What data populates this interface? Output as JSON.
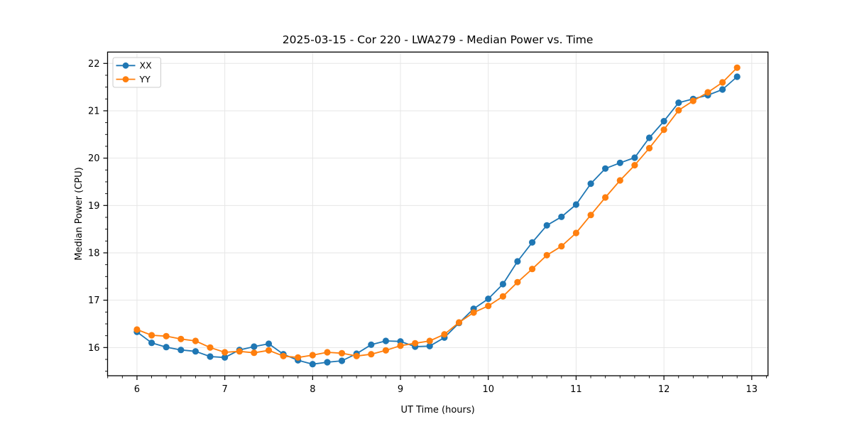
{
  "chart_data": {
    "type": "line",
    "title": "2025-03-15 - Cor 220 - LWA279 - Median Power vs. Time",
    "xlabel": "UT Time (hours)",
    "ylabel": "Median Power (CPU)",
    "xlim": [
      5.665,
      13.185
    ],
    "ylim": [
      15.405,
      22.24
    ],
    "xticks": [
      6,
      7,
      8,
      9,
      10,
      11,
      12,
      13
    ],
    "yticks": [
      16,
      17,
      18,
      19,
      20,
      21,
      22
    ],
    "x_minor_step_hours": 0.1667,
    "y_minor_step": 0.25,
    "grid": "major-only",
    "legend_position": "upper-left",
    "x": [
      6.0,
      6.167,
      6.333,
      6.5,
      6.667,
      6.833,
      7.0,
      7.167,
      7.333,
      7.5,
      7.667,
      7.833,
      8.0,
      8.167,
      8.333,
      8.5,
      8.667,
      8.833,
      9.0,
      9.167,
      9.333,
      9.5,
      9.667,
      9.833,
      10.0,
      10.167,
      10.333,
      10.5,
      10.667,
      10.833,
      11.0,
      11.167,
      11.333,
      11.5,
      11.667,
      11.833,
      12.0,
      12.167,
      12.333,
      12.5,
      12.667,
      12.833
    ],
    "series": [
      {
        "name": "XX",
        "color": "#1f77b4",
        "values": [
          16.33,
          16.1,
          16.01,
          15.95,
          15.92,
          15.81,
          15.79,
          15.95,
          16.02,
          16.08,
          15.86,
          15.73,
          15.65,
          15.69,
          15.72,
          15.87,
          16.06,
          16.14,
          16.13,
          16.02,
          16.03,
          16.21,
          16.52,
          16.82,
          17.03,
          17.34,
          17.82,
          18.22,
          18.58,
          18.76,
          19.02,
          19.46,
          19.78,
          19.9,
          20.01,
          20.43,
          20.78,
          21.17,
          21.25,
          21.33,
          21.45,
          21.72
        ]
      },
      {
        "name": "YY",
        "color": "#ff7f0e",
        "values": [
          16.38,
          16.26,
          16.24,
          16.18,
          16.14,
          16.0,
          15.9,
          15.92,
          15.89,
          15.94,
          15.82,
          15.79,
          15.84,
          15.9,
          15.88,
          15.82,
          15.86,
          15.94,
          16.04,
          16.09,
          16.14,
          16.28,
          16.53,
          16.74,
          16.88,
          17.08,
          17.38,
          17.66,
          17.95,
          18.14,
          18.42,
          18.8,
          19.17,
          19.53,
          19.85,
          20.21,
          20.6,
          21.01,
          21.21,
          21.39,
          21.6,
          21.91
        ]
      }
    ]
  },
  "colors": {
    "background": "#ffffff",
    "grid": "#e6e6e6",
    "spine": "#000000",
    "legend_border": "#cccccc",
    "series_xx": "#1f77b4",
    "series_yy": "#ff7f0e"
  }
}
